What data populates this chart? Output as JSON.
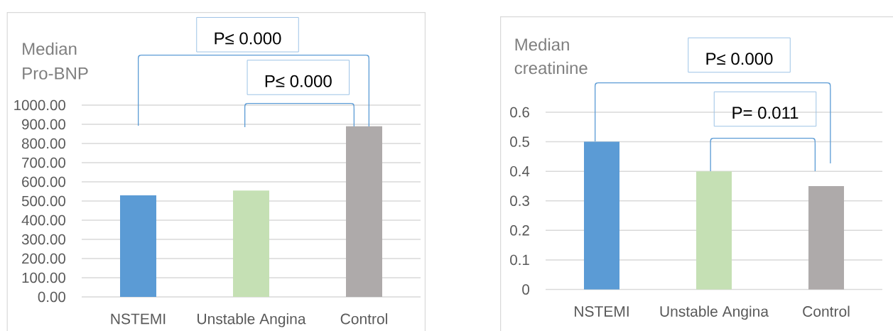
{
  "chart_data": [
    {
      "type": "bar",
      "ylabel": "Median Pro-BNP",
      "categories": [
        "NSTEMI",
        "Unstable Angina",
        "Control"
      ],
      "values": [
        530,
        555,
        890
      ],
      "colors": [
        "#5b9bd5",
        "#c5e0b4",
        "#aeaaaa"
      ],
      "ylim": [
        0,
        1000
      ],
      "yticks": [
        {
          "value": 0,
          "label": "0.00"
        },
        {
          "value": 100,
          "label": "100.00"
        },
        {
          "value": 200,
          "label": "200.00"
        },
        {
          "value": 300,
          "label": "300.00"
        },
        {
          "value": 400,
          "label": "400.00"
        },
        {
          "value": 500,
          "label": "500.00"
        },
        {
          "value": 600,
          "label": "600.00"
        },
        {
          "value": 700,
          "label": "700.00"
        },
        {
          "value": 800,
          "label": "800.00"
        },
        {
          "value": 900,
          "label": "900.00"
        },
        {
          "value": 1000,
          "label": "1000.00"
        }
      ],
      "grid": "y",
      "annotations": [
        "P≤ 0.000",
        "P≤ 0.000"
      ]
    },
    {
      "type": "bar",
      "ylabel": "Median creatinine",
      "categories": [
        "NSTEMI",
        "Unstable Angina",
        "Control"
      ],
      "values": [
        0.5,
        0.4,
        0.35
      ],
      "colors": [
        "#5b9bd5",
        "#c5e0b4",
        "#aeaaaa"
      ],
      "ylim": [
        0,
        0.6
      ],
      "yticks": [
        0,
        0.1,
        0.2,
        0.3,
        0.4,
        0.5,
        0.6
      ],
      "grid": "y",
      "annotations": [
        "P≤ 0.000",
        "P= 0.011"
      ]
    }
  ]
}
